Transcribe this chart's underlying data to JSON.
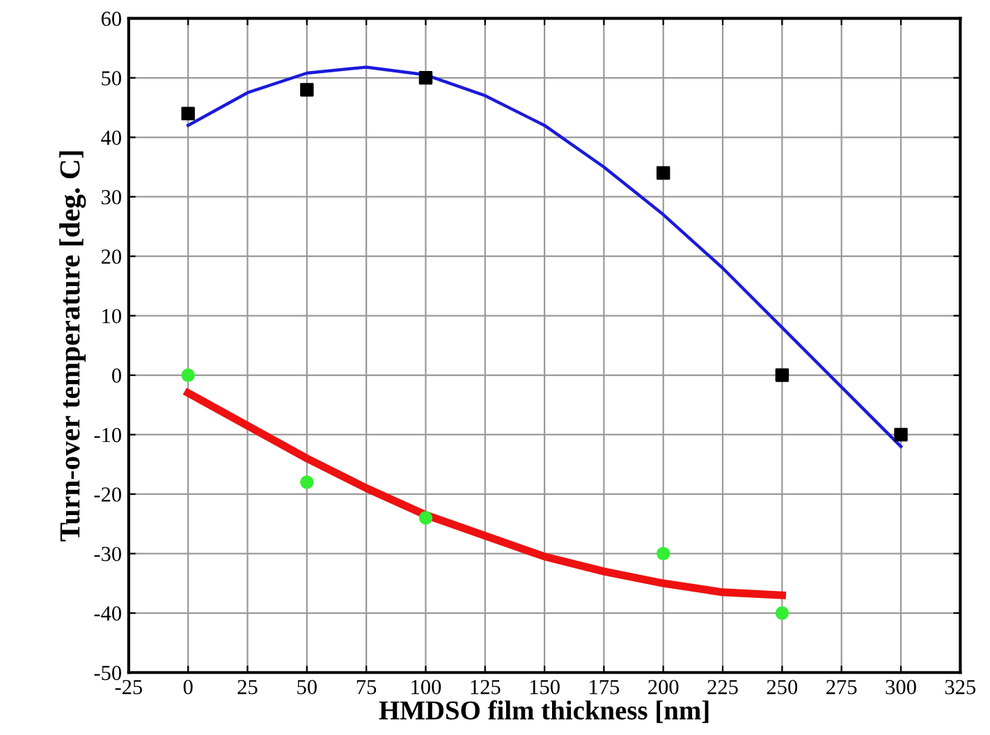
{
  "chart_data": {
    "type": "scatter",
    "xlabel": "HMDSO film thickness [nm]",
    "ylabel": "Turn-over temperature [deg. C]",
    "xlim": [
      -25,
      325
    ],
    "xticks": [
      -25,
      0,
      25,
      50,
      75,
      100,
      125,
      150,
      175,
      200,
      225,
      250,
      275,
      300,
      325
    ],
    "ylim": [
      -50,
      60
    ],
    "yticks": [
      -50,
      -40,
      -30,
      -20,
      -10,
      0,
      10,
      20,
      30,
      40,
      50,
      60
    ],
    "grid": true,
    "series": [
      {
        "marker": "square",
        "color": "#000000",
        "x": [
          0,
          50,
          100,
          200,
          250,
          300
        ],
        "values": [
          44,
          48,
          50,
          34,
          0,
          -10
        ]
      },
      {
        "marker": "circle",
        "color": "#33ee33",
        "x": [
          0,
          50,
          100,
          200,
          250
        ],
        "values": [
          0,
          -18,
          -24,
          -30,
          -40
        ]
      },
      {
        "type": "line",
        "marker": "none",
        "color": "#1a1adc",
        "x": [
          0,
          25,
          50,
          75,
          100,
          125,
          150,
          175,
          200,
          225,
          250,
          275,
          300
        ],
        "values": [
          42,
          47.5,
          50.8,
          51.8,
          50.5,
          47,
          42,
          35,
          27,
          18,
          8,
          -2,
          -12
        ]
      },
      {
        "type": "line",
        "marker": "none",
        "color": "#ee1111",
        "x": [
          0,
          25,
          50,
          75,
          100,
          125,
          150,
          175,
          200,
          225,
          250
        ],
        "values": [
          -3,
          -8.5,
          -14,
          -19,
          -23.5,
          -27,
          -30.5,
          -33,
          -35,
          -36.5,
          -37
        ]
      }
    ]
  }
}
